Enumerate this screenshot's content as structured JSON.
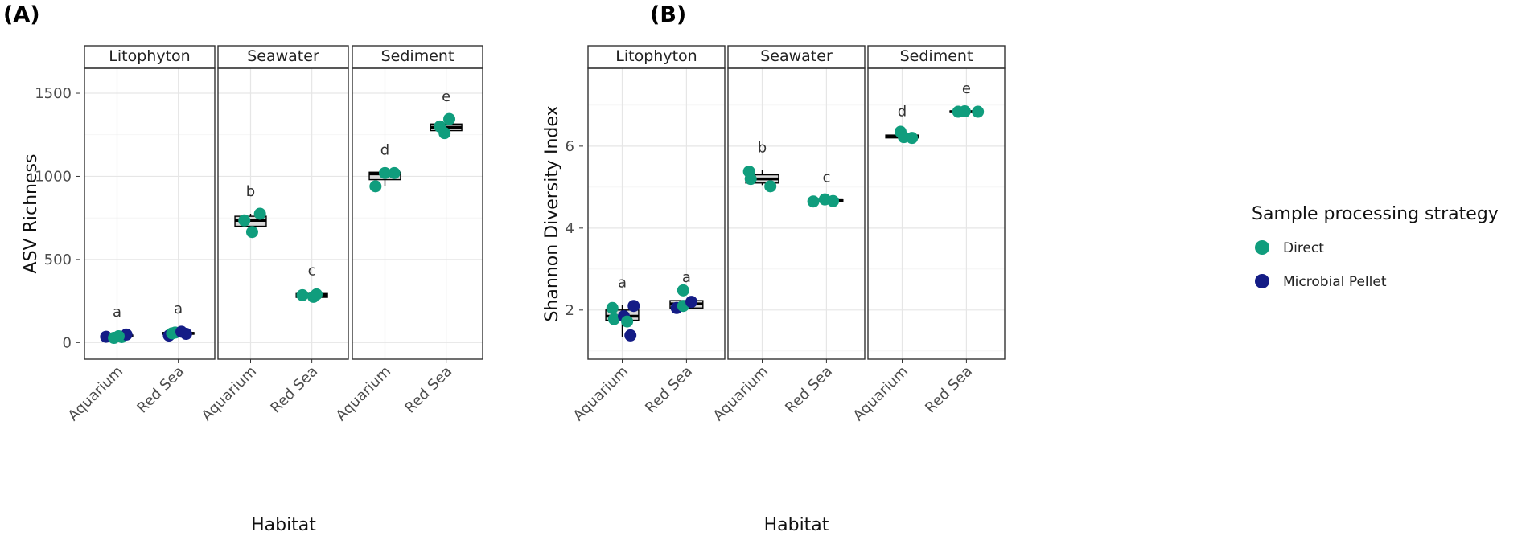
{
  "figure": {
    "panel_a_label": "(A)",
    "panel_b_label": "(B)"
  },
  "legend": {
    "title": "Sample processing strategy",
    "items": [
      {
        "label": "Direct",
        "color": "#109d7d"
      },
      {
        "label": "Microbial Pellet",
        "color": "#141c86"
      }
    ]
  },
  "chart_data": [
    {
      "type": "boxplot",
      "panel": "(A)",
      "ylabel": "ASV Richness",
      "xlabel": "Habitat",
      "ylim": [
        -100,
        1650
      ],
      "yticks": [
        0,
        500,
        1000,
        1500
      ],
      "tick_labels": [
        "0",
        "500",
        "1000",
        "1500"
      ],
      "facets": [
        {
          "name": "Litophyton",
          "groups": [
            {
              "habitat": "Aquarium",
              "box": {
                "q1": 34,
                "median": 40,
                "q3": 45,
                "lo": 28,
                "hi": 50
              },
              "letter": "a",
              "points": [
                {
                  "v": 35,
                  "s": "Microbial Pellet",
                  "dx": -0.35
                },
                {
                  "v": 28,
                  "s": "Direct",
                  "dx": -0.1
                },
                {
                  "v": 33,
                  "s": "Direct",
                  "dx": 0.15
                },
                {
                  "v": 48,
                  "s": "Microbial Pellet",
                  "dx": 0.3
                },
                {
                  "v": 38,
                  "s": "Direct",
                  "dx": 0.05
                }
              ]
            },
            {
              "habitat": "Red Sea",
              "box": {
                "q1": 50,
                "median": 55,
                "q3": 60,
                "lo": 40,
                "hi": 70
              },
              "letter": "a",
              "points": [
                {
                  "v": 42,
                  "s": "Microbial Pellet",
                  "dx": -0.3
                },
                {
                  "v": 55,
                  "s": "Direct",
                  "dx": -0.2
                },
                {
                  "v": 60,
                  "s": "Direct",
                  "dx": -0.1
                },
                {
                  "v": 65,
                  "s": "Microbial Pellet",
                  "dx": 0.1
                },
                {
                  "v": 52,
                  "s": "Microbial Pellet",
                  "dx": 0.25
                }
              ]
            }
          ]
        },
        {
          "name": "Seawater",
          "groups": [
            {
              "habitat": "Aquarium",
              "box": {
                "q1": 700,
                "median": 735,
                "q3": 760,
                "lo": 680,
                "hi": 775
              },
              "letter": "b",
              "points": [
                {
                  "v": 735,
                  "s": "Direct",
                  "dx": -0.2
                },
                {
                  "v": 775,
                  "s": "Direct",
                  "dx": 0.3
                },
                {
                  "v": 665,
                  "s": "Direct",
                  "dx": 0.05
                }
              ]
            },
            {
              "habitat": "Red Sea",
              "box": {
                "q1": 272,
                "median": 285,
                "q3": 295,
                "lo": 265,
                "hi": 298
              },
              "letter": "c",
              "points": [
                {
                  "v": 285,
                  "s": "Direct",
                  "dx": -0.3
                },
                {
                  "v": 275,
                  "s": "Direct",
                  "dx": 0.05
                },
                {
                  "v": 290,
                  "s": "Direct",
                  "dx": 0.15
                }
              ]
            }
          ]
        },
        {
          "name": "Sediment",
          "groups": [
            {
              "habitat": "Aquarium",
              "box": {
                "q1": 980,
                "median": 1015,
                "q3": 1025,
                "lo": 940,
                "hi": 1025
              },
              "letter": "d",
              "points": [
                {
                  "v": 940,
                  "s": "Direct",
                  "dx": -0.3
                },
                {
                  "v": 1020,
                  "s": "Direct",
                  "dx": 0.0
                },
                {
                  "v": 1020,
                  "s": "Direct",
                  "dx": 0.3
                }
              ]
            },
            {
              "habitat": "Red Sea",
              "box": {
                "q1": 1275,
                "median": 1295,
                "q3": 1315,
                "lo": 1260,
                "hi": 1345
              },
              "letter": "e",
              "points": [
                {
                  "v": 1260,
                  "s": "Direct",
                  "dx": -0.05
                },
                {
                  "v": 1300,
                  "s": "Direct",
                  "dx": -0.2
                },
                {
                  "v": 1345,
                  "s": "Direct",
                  "dx": 0.1
                }
              ]
            }
          ]
        }
      ]
    },
    {
      "type": "boxplot",
      "panel": "(B)",
      "ylabel": "Shannon Diversity Index",
      "xlabel": "Habitat",
      "ylim": [
        0.8,
        7.9
      ],
      "yticks": [
        2,
        4,
        6
      ],
      "tick_labels": [
        "2",
        "4",
        "6"
      ],
      "facets": [
        {
          "name": "Litophyton",
          "groups": [
            {
              "habitat": "Aquarium",
              "box": {
                "q1": 1.75,
                "median": 1.85,
                "q3": 2.0,
                "lo": 1.35,
                "hi": 2.12
              },
              "letter": "a",
              "points": [
                {
                  "v": 2.05,
                  "s": "Direct",
                  "dx": -0.3
                },
                {
                  "v": 1.78,
                  "s": "Direct",
                  "dx": -0.25
                },
                {
                  "v": 1.85,
                  "s": "Microbial Pellet",
                  "dx": 0.05
                },
                {
                  "v": 1.72,
                  "s": "Direct",
                  "dx": 0.15
                },
                {
                  "v": 2.1,
                  "s": "Microbial Pellet",
                  "dx": 0.35
                },
                {
                  "v": 1.38,
                  "s": "Microbial Pellet",
                  "dx": 0.25
                }
              ]
            },
            {
              "habitat": "Red Sea",
              "box": {
                "q1": 2.05,
                "median": 2.15,
                "q3": 2.23,
                "lo": 2.0,
                "hi": 2.25
              },
              "letter": "a",
              "points": [
                {
                  "v": 2.05,
                  "s": "Microbial Pellet",
                  "dx": -0.3
                },
                {
                  "v": 2.1,
                  "s": "Direct",
                  "dx": -0.1
                },
                {
                  "v": 2.48,
                  "s": "Direct",
                  "dx": -0.1
                },
                {
                  "v": 2.2,
                  "s": "Microbial Pellet",
                  "dx": 0.15
                }
              ]
            }
          ]
        },
        {
          "name": "Seawater",
          "groups": [
            {
              "habitat": "Aquarium",
              "box": {
                "q1": 5.1,
                "median": 5.2,
                "q3": 5.3,
                "lo": 5.05,
                "hi": 5.42
              },
              "letter": "b",
              "points": [
                {
                  "v": 5.38,
                  "s": "Direct",
                  "dx": -0.4
                },
                {
                  "v": 5.2,
                  "s": "Direct",
                  "dx": -0.35
                },
                {
                  "v": 5.02,
                  "s": "Direct",
                  "dx": 0.25
                }
              ]
            },
            {
              "habitat": "Red Sea",
              "box": {
                "q1": 4.65,
                "median": 4.67,
                "q3": 4.69,
                "lo": 4.65,
                "hi": 4.69
              },
              "letter": "c",
              "points": [
                {
                  "v": 4.65,
                  "s": "Direct",
                  "dx": -0.4
                },
                {
                  "v": 4.7,
                  "s": "Direct",
                  "dx": -0.05
                },
                {
                  "v": 4.66,
                  "s": "Direct",
                  "dx": 0.2
                }
              ]
            }
          ]
        },
        {
          "name": "Sediment",
          "groups": [
            {
              "habitat": "Aquarium",
              "box": {
                "q1": 6.2,
                "median": 6.23,
                "q3": 6.27,
                "lo": 6.2,
                "hi": 6.3
              },
              "letter": "d",
              "points": [
                {
                  "v": 6.35,
                  "s": "Direct",
                  "dx": -0.05
                },
                {
                  "v": 6.22,
                  "s": "Direct",
                  "dx": 0.05
                },
                {
                  "v": 6.2,
                  "s": "Direct",
                  "dx": 0.3
                }
              ]
            },
            {
              "habitat": "Red Sea",
              "box": {
                "q1": 6.83,
                "median": 6.84,
                "q3": 6.86,
                "lo": 6.83,
                "hi": 6.86
              },
              "letter": "e",
              "points": [
                {
                  "v": 6.84,
                  "s": "Direct",
                  "dx": -0.25
                },
                {
                  "v": 6.85,
                  "s": "Direct",
                  "dx": -0.05
                },
                {
                  "v": 6.84,
                  "s": "Direct",
                  "dx": 0.35
                }
              ]
            }
          ]
        }
      ]
    }
  ]
}
